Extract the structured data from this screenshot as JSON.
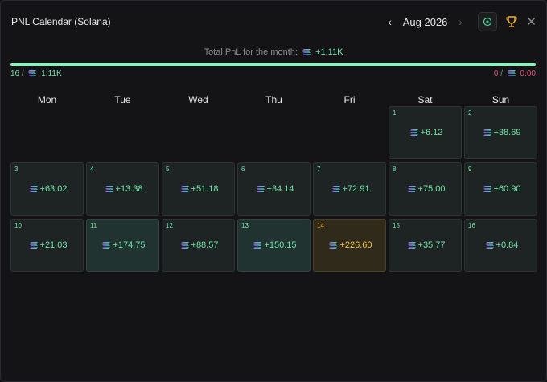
{
  "header": {
    "title": "PNL Calendar (Solana)",
    "month": "Aug 2026",
    "prev_icon": "chevron-left-icon",
    "next_icon": "chevron-right-icon",
    "close_glyph": "✕"
  },
  "summary": {
    "label": "Total PnL for the month:",
    "value": "+1.11K",
    "progress_fraction": 1.0,
    "wins_count": "16",
    "wins_amount": "1.11K",
    "losses_count": "0",
    "losses_amount": "0.00",
    "separator": "/"
  },
  "colors": {
    "profit": "#6fe3a8",
    "loss": "#e8557a",
    "best_day": "#f2c94c"
  },
  "weekdays": [
    "Mon",
    "Tue",
    "Wed",
    "Thu",
    "Fri",
    "Sat",
    "Sun"
  ],
  "days": [
    {
      "day": "",
      "pnl": "",
      "kind": "empty"
    },
    {
      "day": "",
      "pnl": "",
      "kind": "empty"
    },
    {
      "day": "",
      "pnl": "",
      "kind": "empty"
    },
    {
      "day": "",
      "pnl": "",
      "kind": "empty"
    },
    {
      "day": "",
      "pnl": "",
      "kind": "empty"
    },
    {
      "day": "1",
      "pnl": "+6.12",
      "kind": "normal"
    },
    {
      "day": "2",
      "pnl": "+38.69",
      "kind": "normal"
    },
    {
      "day": "3",
      "pnl": "+63.02",
      "kind": "normal"
    },
    {
      "day": "4",
      "pnl": "+13.38",
      "kind": "normal"
    },
    {
      "day": "5",
      "pnl": "+51.18",
      "kind": "normal"
    },
    {
      "day": "6",
      "pnl": "+34.14",
      "kind": "normal"
    },
    {
      "day": "7",
      "pnl": "+72.91",
      "kind": "normal"
    },
    {
      "day": "8",
      "pnl": "+75.00",
      "kind": "normal"
    },
    {
      "day": "9",
      "pnl": "+60.90",
      "kind": "normal"
    },
    {
      "day": "10",
      "pnl": "+21.03",
      "kind": "normal"
    },
    {
      "day": "11",
      "pnl": "+174.75",
      "kind": "high"
    },
    {
      "day": "12",
      "pnl": "+88.57",
      "kind": "normal"
    },
    {
      "day": "13",
      "pnl": "+150.15",
      "kind": "high"
    },
    {
      "day": "14",
      "pnl": "+226.60",
      "kind": "best"
    },
    {
      "day": "15",
      "pnl": "+35.77",
      "kind": "normal"
    },
    {
      "day": "16",
      "pnl": "+0.84",
      "kind": "normal"
    }
  ]
}
